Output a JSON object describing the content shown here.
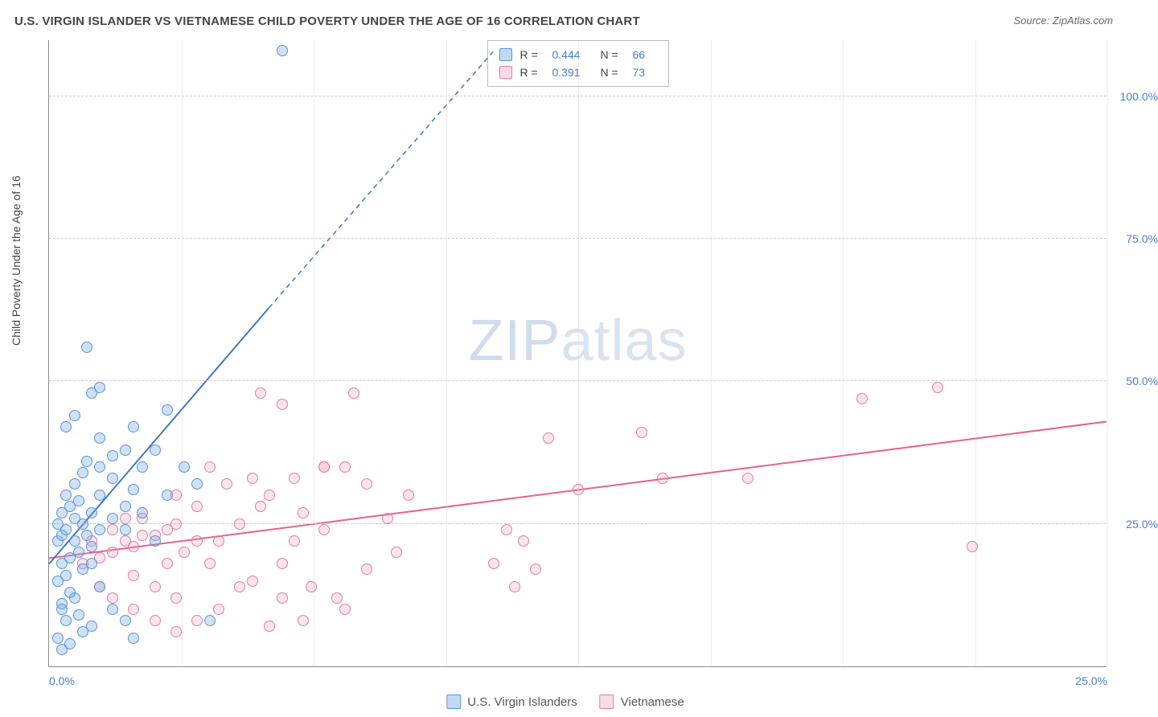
{
  "title": "U.S. VIRGIN ISLANDER VS VIETNAMESE CHILD POVERTY UNDER THE AGE OF 16 CORRELATION CHART",
  "source": "Source: ZipAtlas.com",
  "watermark_zip": "ZIP",
  "watermark_atlas": "atlas",
  "ylabel": "Child Poverty Under the Age of 16",
  "chart": {
    "type": "scatter",
    "background_color": "#ffffff",
    "grid_color": "#cccccc",
    "axis_color": "#888888",
    "xlim": [
      0,
      25
    ],
    "ylim": [
      0,
      110
    ],
    "ytick_values": [
      25,
      50,
      75,
      100
    ],
    "ytick_labels": [
      "25.0%",
      "50.0%",
      "75.0%",
      "100.0%"
    ],
    "xtick_values": [
      0,
      25
    ],
    "xtick_labels": [
      "0.0%",
      "25.0%"
    ],
    "xgrid_values": [
      3.125,
      6.25,
      9.375,
      12.5,
      15.625,
      18.75,
      21.875,
      25
    ],
    "marker_radius": 7,
    "series": {
      "blue": {
        "label": "U.S. Virgin Islanders",
        "fill": "rgba(120,170,225,0.35)",
        "stroke": "#5a94d6",
        "R": "0.444",
        "N": "66",
        "trend": {
          "x1": 0,
          "y1": 18,
          "x2": 5.2,
          "y2": 63,
          "x2_dash": 10.5,
          "y2_dash": 108,
          "stroke": "#3f76c6",
          "width": 2
        },
        "points": [
          [
            0.3,
            3
          ],
          [
            0.5,
            4
          ],
          [
            0.2,
            5
          ],
          [
            0.8,
            6
          ],
          [
            1.0,
            7
          ],
          [
            0.4,
            8
          ],
          [
            0.3,
            10
          ],
          [
            0.6,
            12
          ],
          [
            1.2,
            14
          ],
          [
            0.2,
            15
          ],
          [
            0.4,
            16
          ],
          [
            0.8,
            17
          ],
          [
            0.3,
            18
          ],
          [
            0.5,
            19
          ],
          [
            0.7,
            20
          ],
          [
            1.0,
            21
          ],
          [
            0.2,
            22
          ],
          [
            0.6,
            22
          ],
          [
            0.9,
            23
          ],
          [
            0.3,
            23
          ],
          [
            1.2,
            24
          ],
          [
            0.4,
            24
          ],
          [
            0.8,
            25
          ],
          [
            0.2,
            25
          ],
          [
            0.6,
            26
          ],
          [
            1.5,
            26
          ],
          [
            0.3,
            27
          ],
          [
            1.0,
            27
          ],
          [
            0.5,
            28
          ],
          [
            1.8,
            28
          ],
          [
            0.7,
            29
          ],
          [
            1.2,
            30
          ],
          [
            0.4,
            30
          ],
          [
            2.0,
            31
          ],
          [
            0.6,
            32
          ],
          [
            1.5,
            33
          ],
          [
            0.8,
            34
          ],
          [
            1.2,
            35
          ],
          [
            2.2,
            35
          ],
          [
            0.9,
            36
          ],
          [
            1.5,
            37
          ],
          [
            1.8,
            38
          ],
          [
            2.5,
            38
          ],
          [
            1.2,
            40
          ],
          [
            2.0,
            42
          ],
          [
            2.8,
            45
          ],
          [
            1.0,
            48
          ],
          [
            1.2,
            49
          ],
          [
            3.2,
            35
          ],
          [
            3.5,
            32
          ],
          [
            2.8,
            30
          ],
          [
            2.2,
            27
          ],
          [
            1.8,
            24
          ],
          [
            3.8,
            8
          ],
          [
            1.5,
            10
          ],
          [
            1.8,
            8
          ],
          [
            2.0,
            5
          ],
          [
            0.9,
            56
          ],
          [
            5.5,
            108
          ],
          [
            0.4,
            42
          ],
          [
            0.6,
            44
          ],
          [
            2.5,
            22
          ],
          [
            1.0,
            18
          ],
          [
            0.5,
            13
          ],
          [
            0.3,
            11
          ],
          [
            0.7,
            9
          ]
        ]
      },
      "pink": {
        "label": "Vietnamese",
        "fill": "rgba(240,150,180,0.25)",
        "stroke": "#e77aa3",
        "R": "0.391",
        "N": "73",
        "trend": {
          "x1": 0,
          "y1": 19,
          "x2": 25,
          "y2": 43,
          "stroke": "#e6608f",
          "width": 2
        },
        "points": [
          [
            0.8,
            18
          ],
          [
            1.2,
            19
          ],
          [
            1.5,
            20
          ],
          [
            2.0,
            21
          ],
          [
            1.0,
            22
          ],
          [
            1.8,
            22
          ],
          [
            2.2,
            23
          ],
          [
            2.5,
            23
          ],
          [
            1.5,
            24
          ],
          [
            3.0,
            25
          ],
          [
            2.8,
            18
          ],
          [
            3.2,
            20
          ],
          [
            3.5,
            22
          ],
          [
            2.0,
            16
          ],
          [
            2.5,
            14
          ],
          [
            3.0,
            12
          ],
          [
            3.8,
            18
          ],
          [
            4.0,
            22
          ],
          [
            4.5,
            25
          ],
          [
            5.0,
            28
          ],
          [
            4.2,
            32
          ],
          [
            5.2,
            30
          ],
          [
            5.8,
            33
          ],
          [
            6.0,
            27
          ],
          [
            6.5,
            24
          ],
          [
            7.0,
            35
          ],
          [
            4.8,
            15
          ],
          [
            5.5,
            18
          ],
          [
            6.2,
            14
          ],
          [
            7.2,
            48
          ],
          [
            5.0,
            48
          ],
          [
            6.8,
            12
          ],
          [
            6.0,
            8
          ],
          [
            7.5,
            17
          ],
          [
            8.0,
            26
          ],
          [
            8.5,
            30
          ],
          [
            5.5,
            46
          ],
          [
            6.5,
            35
          ],
          [
            10.5,
            18
          ],
          [
            11.0,
            14
          ],
          [
            11.2,
            22
          ],
          [
            10.8,
            24
          ],
          [
            11.5,
            17
          ],
          [
            11.8,
            40
          ],
          [
            12.5,
            31
          ],
          [
            14.0,
            41
          ],
          [
            14.5,
            33
          ],
          [
            16.5,
            33
          ],
          [
            3.5,
            8
          ],
          [
            4.0,
            10
          ],
          [
            5.2,
            7
          ],
          [
            7.0,
            10
          ],
          [
            2.2,
            26
          ],
          [
            3.0,
            30
          ],
          [
            3.8,
            35
          ],
          [
            2.8,
            24
          ],
          [
            1.8,
            26
          ],
          [
            21.0,
            49
          ],
          [
            21.8,
            21
          ],
          [
            19.2,
            47
          ],
          [
            6.5,
            35
          ],
          [
            3.5,
            28
          ],
          [
            4.8,
            33
          ],
          [
            5.8,
            22
          ],
          [
            7.5,
            32
          ],
          [
            8.2,
            20
          ],
          [
            4.5,
            14
          ],
          [
            5.5,
            12
          ],
          [
            2.5,
            8
          ],
          [
            3.0,
            6
          ],
          [
            1.5,
            12
          ],
          [
            2.0,
            10
          ],
          [
            1.2,
            14
          ]
        ]
      }
    }
  },
  "stats_legend": {
    "R_label": "R =",
    "N_label": "N ="
  }
}
